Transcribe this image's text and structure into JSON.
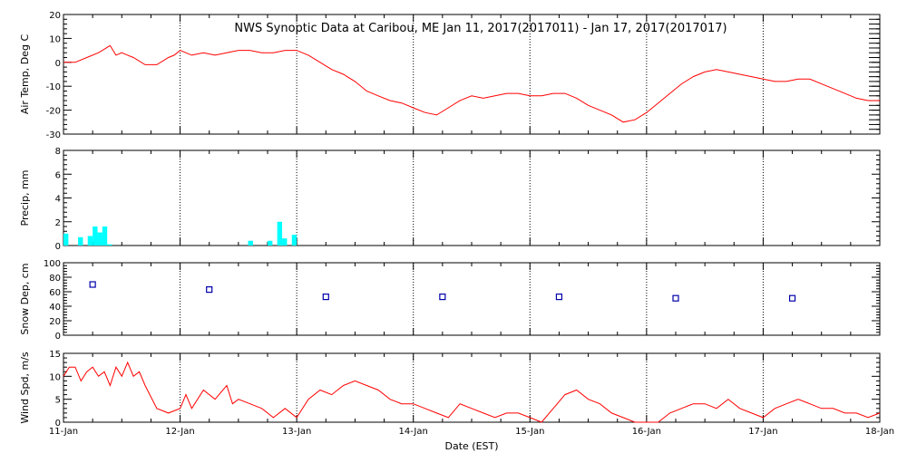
{
  "chart_data": [
    {
      "type": "line",
      "title": "NWS Synoptic Data at Caribou, ME   Jan 11, 2017(2017011) - Jan 17, 2017(2017017)",
      "ylabel": "Air Temp, Deg C",
      "ylim": [
        -30,
        20
      ],
      "yticks": [
        "-30",
        "-20",
        "-10",
        "0",
        "10",
        "20"
      ],
      "xlim": [
        0,
        7
      ],
      "color": "#ff0000",
      "series": [
        {
          "x": [
            0,
            0.1,
            0.2,
            0.3,
            0.4,
            0.45,
            0.5,
            0.55,
            0.6,
            0.7,
            0.8,
            0.9,
            0.95,
            1.0,
            1.1,
            1.2,
            1.3,
            1.4,
            1.5,
            1.6,
            1.7,
            1.8,
            1.9,
            2.0,
            2.1,
            2.2,
            2.3,
            2.4,
            2.5,
            2.6,
            2.7,
            2.8,
            2.9,
            3.0,
            3.1,
            3.2,
            3.3,
            3.4,
            3.5,
            3.6,
            3.7,
            3.8,
            3.9,
            4.0,
            4.1,
            4.2,
            4.3,
            4.4,
            4.5,
            4.6,
            4.7,
            4.8,
            4.9,
            5.0,
            5.1,
            5.2,
            5.3,
            5.4,
            5.5,
            5.6,
            5.7,
            5.8,
            5.9,
            6.0,
            6.1,
            6.2,
            6.3,
            6.4,
            6.5,
            6.6,
            6.7,
            6.8,
            6.9,
            7.0
          ],
          "y": [
            0,
            0,
            2,
            4,
            7,
            3,
            4,
            3,
            2,
            -1,
            -1,
            2,
            3,
            5,
            3,
            4,
            3,
            4,
            5,
            5,
            4,
            4,
            5,
            5,
            3,
            0,
            -3,
            -5,
            -8,
            -12,
            -14,
            -16,
            -17,
            -19,
            -21,
            -22,
            -19,
            -16,
            -14,
            -15,
            -14,
            -13,
            -13,
            -14,
            -14,
            -13,
            -13,
            -15,
            -18,
            -20,
            -22,
            -25,
            -24,
            -21,
            -17,
            -13,
            -9,
            -6,
            -4,
            -3,
            -4,
            -5,
            -6,
            -7,
            -8,
            -8,
            -7,
            -7,
            -9,
            -11,
            -13,
            -15,
            -16,
            -16
          ]
        }
      ]
    },
    {
      "type": "bar",
      "ylabel": "Precip, mm",
      "ylim": [
        0,
        8
      ],
      "yticks": [
        "0",
        "2",
        "4",
        "6",
        "8"
      ],
      "xlim": [
        0,
        7
      ],
      "color": "#00ffff",
      "bar_width_days": 0.0417,
      "series": [
        {
          "x": [
            0,
            0.125,
            0.208,
            0.25,
            0.292,
            0.333,
            0.375,
            1.583,
            1.75,
            1.833,
            1.875,
            1.958
          ],
          "values": [
            1.0,
            0.7,
            0.8,
            1.6,
            1.1,
            1.6,
            0.1,
            0.4,
            0.4,
            2.0,
            0.6,
            0.9
          ]
        }
      ]
    },
    {
      "type": "scatter",
      "ylabel": "Snow Dep, cm",
      "ylim": [
        0,
        100
      ],
      "yticks": [
        "0",
        "20",
        "40",
        "60",
        "80",
        "100"
      ],
      "xlim": [
        0,
        7
      ],
      "color": "#0000aa",
      "series": [
        {
          "x": [
            0.25,
            1.25,
            2.25,
            3.25,
            4.25,
            5.25,
            6.25
          ],
          "y": [
            70,
            63,
            53,
            53,
            53,
            51,
            51
          ]
        }
      ]
    },
    {
      "type": "line",
      "ylabel": "Wind Spd, m/s",
      "xlabel": "Date (EST)",
      "ylim": [
        0,
        15
      ],
      "yticks": [
        "0",
        "5",
        "10",
        "15"
      ],
      "xlim": [
        0,
        7
      ],
      "xticks": [
        "11-Jan",
        "12-Jan",
        "13-Jan",
        "14-Jan",
        "15-Jan",
        "16-Jan",
        "17-Jan",
        "18-Jan"
      ],
      "color": "#ff0000",
      "series": [
        {
          "x": [
            0,
            0.05,
            0.1,
            0.15,
            0.2,
            0.25,
            0.3,
            0.35,
            0.4,
            0.45,
            0.5,
            0.55,
            0.6,
            0.65,
            0.7,
            0.8,
            0.9,
            1.0,
            1.05,
            1.1,
            1.2,
            1.3,
            1.4,
            1.45,
            1.5,
            1.6,
            1.7,
            1.8,
            1.9,
            2.0,
            2.1,
            2.2,
            2.3,
            2.4,
            2.5,
            2.6,
            2.7,
            2.8,
            2.9,
            3.0,
            3.1,
            3.2,
            3.3,
            3.4,
            3.5,
            3.6,
            3.7,
            3.8,
            3.9,
            4.0,
            4.1,
            4.2,
            4.3,
            4.4,
            4.5,
            4.6,
            4.7,
            4.8,
            4.9,
            5.0,
            5.1,
            5.2,
            5.3,
            5.4,
            5.5,
            5.6,
            5.7,
            5.8,
            5.9,
            6.0,
            6.1,
            6.2,
            6.3,
            6.4,
            6.5,
            6.6,
            6.7,
            6.8,
            6.9,
            7.0
          ],
          "y": [
            10,
            12,
            12,
            9,
            11,
            12,
            10,
            11,
            8,
            12,
            10,
            13,
            10,
            11,
            8,
            3,
            2,
            3,
            6,
            3,
            7,
            5,
            8,
            4,
            5,
            4,
            3,
            1,
            3,
            1,
            5,
            7,
            6,
            8,
            9,
            8,
            7,
            5,
            4,
            4,
            3,
            2,
            1,
            4,
            3,
            2,
            1,
            2,
            2,
            1,
            0,
            3,
            6,
            7,
            5,
            4,
            2,
            1,
            0,
            0,
            0,
            2,
            3,
            4,
            4,
            3,
            5,
            3,
            2,
            1,
            3,
            4,
            5,
            4,
            3,
            3,
            2,
            2,
            1,
            2
          ]
        }
      ]
    }
  ]
}
